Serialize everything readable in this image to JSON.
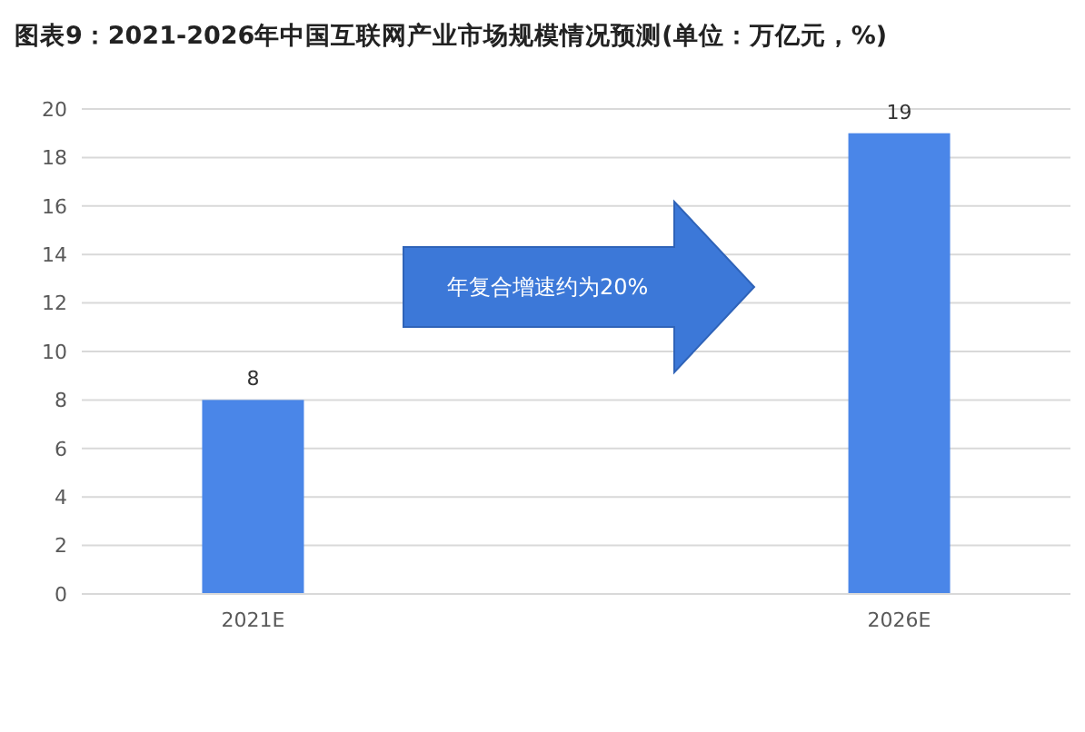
{
  "chart_data": {
    "type": "bar",
    "title": "图表9：2021-2026年中国互联网产业市场规模情况预测(单位：万亿元，%)",
    "categories": [
      "2021E",
      "2026E"
    ],
    "values": [
      8,
      19
    ],
    "color": "#4a86e8",
    "ylim": [
      0,
      20
    ],
    "yticks": [
      0,
      2,
      4,
      6,
      8,
      10,
      12,
      14,
      16,
      18,
      20
    ],
    "grid": "y",
    "data_labels": true,
    "annotations": [
      "年复合增速约为20%"
    ]
  }
}
